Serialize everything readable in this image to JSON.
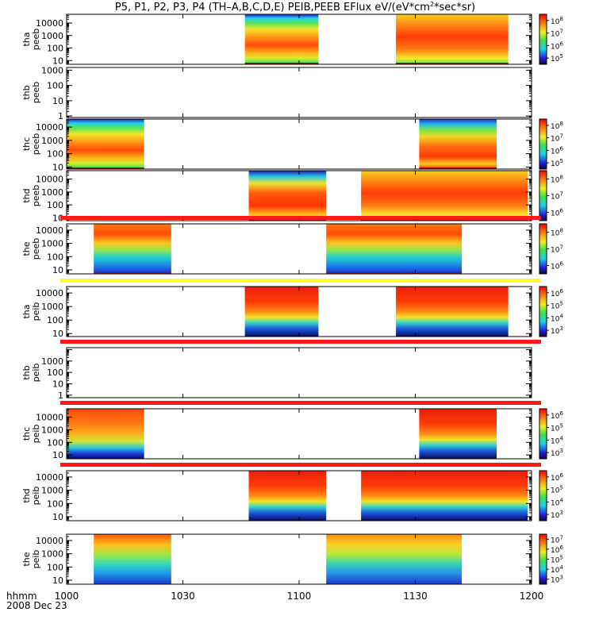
{
  "chart_data": {
    "type": "heatmap",
    "title": "P5, P1, P2, P3, P4 (TH–A,B,C,D,E) PEIB,PEEB EFlux eV/(eV*cm",
    "title_sup": "2",
    "title_end": "*sec*sr)",
    "x_label_line1": "hhmm",
    "x_label_line2": "2008 Dec 23",
    "x_ticks": [
      "1000",
      "1030",
      "1100",
      "1130",
      "1200"
    ],
    "x_tick_values": [
      600,
      630,
      660,
      690,
      720
    ],
    "xlim": [
      600,
      720
    ],
    "y_scale": "log",
    "panels": [
      {
        "label1": "tha",
        "label2": "peeb",
        "ylim": [
          5,
          50000
        ],
        "yticks": [
          "10",
          "100",
          "1000",
          "10000"
        ],
        "cb": [
          "10",
          "10",
          "10",
          "10"
        ],
        "cb_exp": [
          "5",
          "6",
          "7",
          "8"
        ],
        "segments": [
          [
            646,
            665,
            "ee1"
          ],
          [
            685,
            714,
            "ee3"
          ]
        ],
        "bar": "none"
      },
      {
        "label1": "thb",
        "label2": "peeb",
        "ylim": [
          0.8,
          1500
        ],
        "yticks": [
          "1",
          "10",
          "100",
          "1000"
        ],
        "cb": [],
        "cb_exp": [],
        "segments": [],
        "bar": "none"
      },
      {
        "label1": "thc",
        "label2": "peeb",
        "ylim": [
          7,
          40000
        ],
        "yticks": [
          "10",
          "100",
          "1000",
          "10000"
        ],
        "cb": [
          "10",
          "10",
          "10",
          "10"
        ],
        "cb_exp": [
          "5",
          "6",
          "7",
          "8"
        ],
        "segments": [
          [
            600,
            620,
            "ee1"
          ],
          [
            691,
            711,
            "ee2"
          ]
        ],
        "bar": "none"
      },
      {
        "label1": "thd",
        "label2": "peeb",
        "ylim": [
          6,
          45000
        ],
        "yticks": [
          "10",
          "100",
          "1000",
          "10000"
        ],
        "cb": [
          "10",
          "10",
          "10"
        ],
        "cb_exp": [
          "6",
          "7",
          "8"
        ],
        "segments": [
          [
            647,
            667,
            "ee4"
          ],
          [
            676,
            719,
            "ee3"
          ]
        ],
        "bar": "none"
      },
      {
        "label1": "the",
        "label2": "peeb",
        "ylim": [
          5,
          30000
        ],
        "yticks": [
          "10",
          "100",
          "1000",
          "10000"
        ],
        "cb": [
          "10",
          "10",
          "10"
        ],
        "cb_exp": [
          "6",
          "7",
          "8"
        ],
        "segments": [
          [
            607,
            627,
            "ee5"
          ],
          [
            667,
            702,
            "ee5"
          ]
        ],
        "bar": "red"
      },
      {
        "label1": "tha",
        "label2": "peib",
        "ylim": [
          6,
          30000
        ],
        "yticks": [
          "10",
          "100",
          "1000",
          "10000"
        ],
        "cb": [
          "10",
          "10",
          "10",
          "10"
        ],
        "cb_exp": [
          "3",
          "4",
          "5",
          "6"
        ],
        "segments": [
          [
            646,
            665,
            "ii1"
          ],
          [
            685,
            714,
            "ii1"
          ]
        ],
        "bar": "yellow"
      },
      {
        "label1": "thb",
        "label2": "peib",
        "ylim": [
          0.6,
          15000
        ],
        "yticks": [
          "1",
          "10",
          "100",
          "1000"
        ],
        "cb": [],
        "cb_exp": [],
        "segments": [],
        "bar": "red"
      },
      {
        "label1": "thc",
        "label2": "peib",
        "ylim": [
          5,
          45000
        ],
        "yticks": [
          "10",
          "100",
          "1000",
          "10000"
        ],
        "cb": [
          "10",
          "10",
          "10",
          "10"
        ],
        "cb_exp": [
          "3",
          "4",
          "5",
          "6"
        ],
        "segments": [
          [
            600,
            620,
            "ii2"
          ],
          [
            691,
            711,
            "ii1"
          ]
        ],
        "bar": "red"
      },
      {
        "label1": "thd",
        "label2": "peib",
        "ylim": [
          5,
          30000
        ],
        "yticks": [
          "10",
          "100",
          "1000",
          "10000"
        ],
        "cb": [
          "10",
          "10",
          "10",
          "10"
        ],
        "cb_exp": [
          "3",
          "4",
          "5",
          "6"
        ],
        "segments": [
          [
            647,
            667,
            "ii1"
          ],
          [
            676,
            719,
            "ii1"
          ]
        ],
        "bar": "red"
      },
      {
        "label1": "the",
        "label2": "peib",
        "ylim": [
          5,
          30000
        ],
        "yticks": [
          "10",
          "100",
          "1000",
          "10000"
        ],
        "cb": [
          "10",
          "10",
          "10",
          "10",
          "10"
        ],
        "cb_exp": [
          "3",
          "4",
          "5",
          "6",
          "7"
        ],
        "segments": [
          [
            607,
            627,
            "ii3"
          ],
          [
            667,
            702,
            "ii4"
          ]
        ],
        "bar": "none"
      }
    ]
  }
}
